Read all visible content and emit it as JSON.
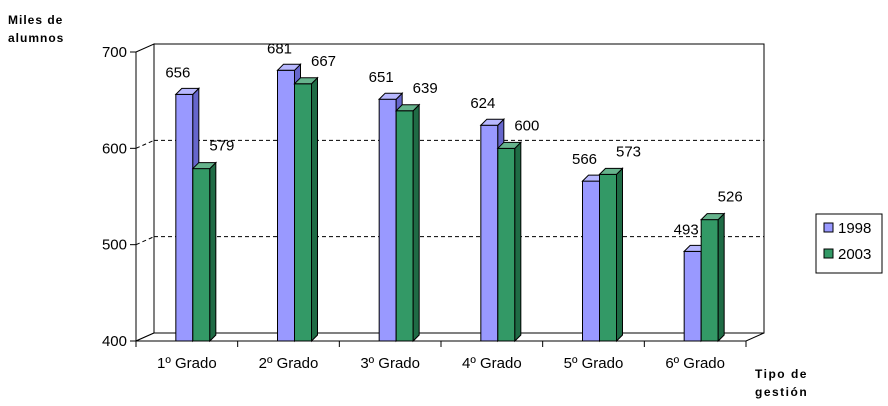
{
  "chart_data": {
    "type": "bar",
    "ylabel": "Miles de alumnos",
    "xlabel": "Tipo de gestión",
    "ylim": [
      400,
      700
    ],
    "yticks": [
      400,
      500,
      600,
      700
    ],
    "grid": true,
    "legend_position": "right",
    "categories": [
      "1º Grado",
      "2º Grado",
      "3º Grado",
      "4º Grado",
      "5º Grado",
      "6º Grado"
    ],
    "series": [
      {
        "name": "1998",
        "values": [
          656,
          681,
          651,
          624,
          566,
          493
        ],
        "color": "#9999ff"
      },
      {
        "name": "2003",
        "values": [
          579,
          667,
          639,
          600,
          573,
          526
        ],
        "color": "#339966"
      }
    ]
  }
}
